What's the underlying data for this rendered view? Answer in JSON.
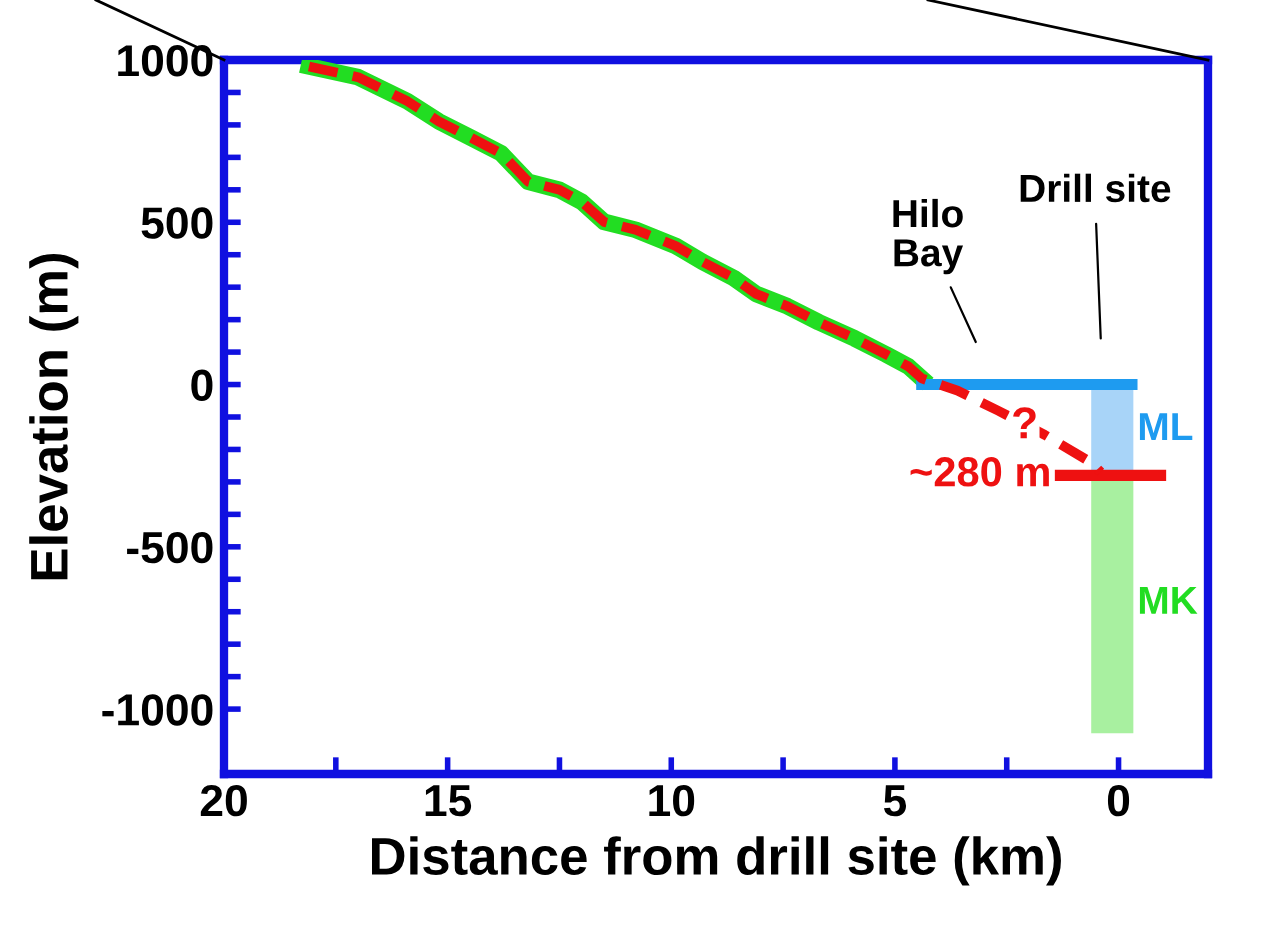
{
  "chart_data": {
    "type": "line",
    "xlabel": "Distance from drill site (km)",
    "ylabel": "Elevation (m)",
    "xlim": [
      20,
      -2
    ],
    "ylim": [
      -1200,
      1000
    ],
    "xticks": [
      20,
      {
        "value": 17.5,
        "label": null
      },
      15,
      {
        "value": 12.5,
        "label": null
      },
      10,
      {
        "value": 7.5,
        "label": null
      },
      5,
      {
        "value": 2.5,
        "label": null
      },
      0
    ],
    "yticks": [
      -1000,
      {
        "value": -900,
        "label": null
      },
      {
        "value": -800,
        "label": null
      },
      {
        "value": -700,
        "label": null
      },
      {
        "value": -600,
        "label": null
      },
      -500,
      {
        "value": -400,
        "label": null
      },
      {
        "value": -300,
        "label": null
      },
      {
        "value": -200,
        "label": null
      },
      {
        "value": -100,
        "label": null
      },
      0,
      {
        "value": 100,
        "label": null
      },
      {
        "value": 200,
        "label": null
      },
      {
        "value": 300,
        "label": null
      },
      {
        "value": 400,
        "label": null
      },
      500,
      {
        "value": 600,
        "label": null
      },
      {
        "value": 700,
        "label": null
      },
      {
        "value": 800,
        "label": null
      },
      {
        "value": 900,
        "label": null
      },
      1000
    ],
    "grid": false,
    "legend": false,
    "series": [
      {
        "type": "bar",
        "name": "ML",
        "color": "#a8d4f8",
        "x": [
          0.14
        ],
        "base": [
          0
        ],
        "values": [
          -280
        ]
      },
      {
        "type": "bar",
        "name": "MK",
        "color": "#a8f0a0",
        "x": [
          0.14
        ],
        "base": [
          -280
        ],
        "values": [
          -790
        ]
      },
      {
        "color": "#22dd22",
        "x": [
          18.1,
          17.0,
          15.9,
          15.2,
          14.5,
          13.8,
          13.2,
          12.5,
          12.0,
          11.5,
          10.8,
          9.9,
          9.3,
          8.6,
          8.1,
          7.4,
          6.7,
          5.9,
          5.2,
          4.7,
          4.4
        ],
        "values": [
          980,
          947,
          873,
          811,
          762,
          712,
          625,
          600,
          563,
          501,
          477,
          427,
          378,
          328,
          279,
          241,
          192,
          142,
          93,
          56,
          19
        ]
      },
      {
        "color": "#1e9bf0",
        "x": [
          4.4,
          -0.3
        ],
        "values": [
          0,
          0
        ]
      },
      {
        "name": "~280 m",
        "color": "#ee1111",
        "x": [
          1.3,
          -0.94
        ],
        "values": [
          -280,
          -280
        ]
      },
      {
        "color": "#ee1111",
        "line_style": "dashed",
        "x": [
          18.1,
          17.0,
          15.9,
          15.2,
          14.5,
          13.8,
          13.2,
          12.5,
          12.0,
          11.5,
          10.8,
          9.9,
          9.3,
          8.6,
          8.1,
          7.4,
          6.7,
          5.9,
          5.2,
          4.7,
          4.4,
          3.6,
          2.7,
          1.65,
          0.6,
          0.4
        ],
        "values": [
          980,
          947,
          873,
          811,
          762,
          712,
          625,
          600,
          563,
          501,
          477,
          427,
          378,
          328,
          279,
          241,
          192,
          142,
          93,
          56,
          19,
          -19,
          -80,
          -155,
          -241,
          -270
        ]
      }
    ],
    "annotations": [
      "Hilo\nBay",
      "Drill site",
      {
        "text": "?",
        "x": 2.1,
        "y": -130
      }
    ]
  }
}
